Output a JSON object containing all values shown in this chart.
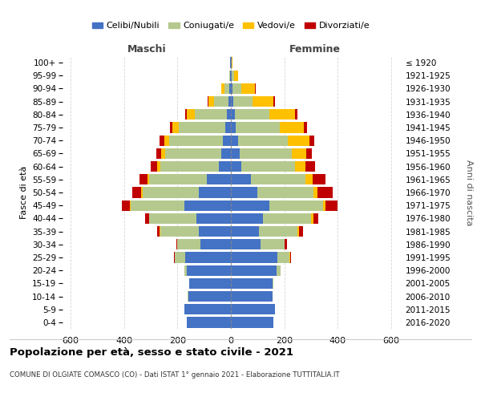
{
  "age_groups": [
    "0-4",
    "5-9",
    "10-14",
    "15-19",
    "20-24",
    "25-29",
    "30-34",
    "35-39",
    "40-44",
    "45-49",
    "50-54",
    "55-59",
    "60-64",
    "65-69",
    "70-74",
    "75-79",
    "80-84",
    "85-89",
    "90-94",
    "95-99",
    "100+"
  ],
  "birth_years": [
    "2016-2020",
    "2011-2015",
    "2006-2010",
    "2001-2005",
    "1996-2000",
    "1991-1995",
    "1986-1990",
    "1981-1985",
    "1976-1980",
    "1971-1975",
    "1966-1970",
    "1961-1965",
    "1956-1960",
    "1951-1955",
    "1946-1950",
    "1941-1945",
    "1936-1940",
    "1931-1935",
    "1926-1930",
    "1921-1925",
    "≤ 1920"
  ],
  "males": {
    "celibi": [
      165,
      175,
      160,
      155,
      165,
      170,
      115,
      120,
      130,
      175,
      120,
      90,
      45,
      35,
      30,
      20,
      15,
      8,
      5,
      2,
      2
    ],
    "coniugati": [
      0,
      0,
      1,
      2,
      10,
      40,
      85,
      145,
      175,
      200,
      210,
      215,
      220,
      210,
      200,
      175,
      120,
      55,
      20,
      3,
      1
    ],
    "vedovi": [
      0,
      0,
      0,
      0,
      0,
      0,
      0,
      1,
      2,
      3,
      5,
      8,
      10,
      15,
      20,
      25,
      30,
      20,
      10,
      2,
      0
    ],
    "divorziati": [
      0,
      0,
      0,
      0,
      0,
      3,
      5,
      10,
      15,
      30,
      35,
      30,
      25,
      20,
      18,
      8,
      5,
      3,
      2,
      0,
      0
    ]
  },
  "females": {
    "nubili": [
      160,
      165,
      155,
      155,
      170,
      175,
      110,
      105,
      120,
      145,
      100,
      75,
      40,
      32,
      28,
      18,
      15,
      10,
      5,
      3,
      2
    ],
    "coniugate": [
      0,
      0,
      1,
      3,
      15,
      45,
      90,
      145,
      180,
      200,
      210,
      205,
      200,
      195,
      185,
      165,
      130,
      70,
      35,
      8,
      2
    ],
    "vedove": [
      0,
      0,
      0,
      0,
      0,
      1,
      2,
      4,
      8,
      10,
      15,
      25,
      40,
      55,
      80,
      90,
      95,
      80,
      50,
      15,
      3
    ],
    "divorziate": [
      0,
      0,
      0,
      0,
      0,
      3,
      8,
      15,
      20,
      45,
      55,
      50,
      35,
      20,
      18,
      12,
      8,
      5,
      2,
      0,
      0
    ]
  },
  "colors": {
    "celibi": "#4472c4",
    "coniugati": "#b5c98e",
    "vedovi": "#ffc000",
    "divorziati": "#c00000"
  },
  "xlim": 630,
  "title": "Popolazione per età, sesso e stato civile - 2021",
  "subtitle": "COMUNE DI OLGIATE COMASCO (CO) - Dati ISTAT 1° gennaio 2021 - Elaborazione TUTTITALIA.IT",
  "legend_labels": [
    "Celibi/Nubili",
    "Coniugati/e",
    "Vedovi/e",
    "Divorziati/e"
  ],
  "xlabel_left": "Maschi",
  "xlabel_right": "Femmine",
  "ylabel_left": "Fasce di età",
  "ylabel_right": "Anni di nascita"
}
